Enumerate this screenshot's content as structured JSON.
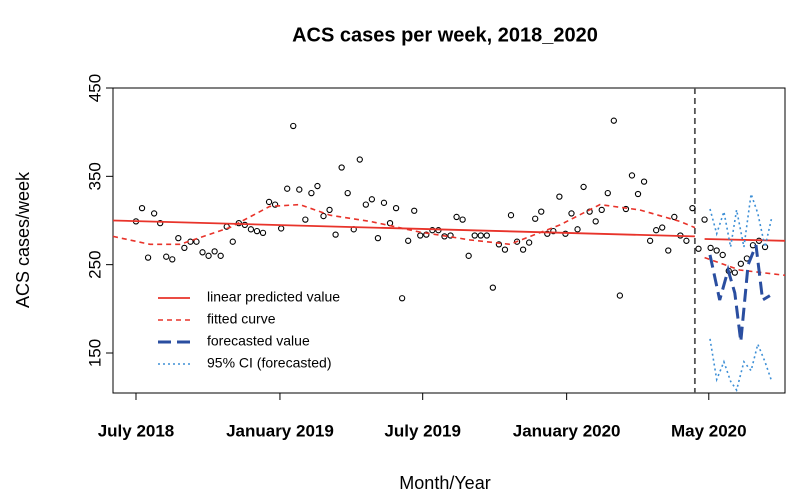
{
  "chart_data": {
    "type": "line",
    "title": "ACS cases per week, 2018_2020",
    "xlabel": "Month/Year",
    "ylabel": "ACS cases/week",
    "xlim": [
      -3.8,
      107.3
    ],
    "ylim": [
      104.7,
      450
    ],
    "xticks": [
      {
        "value": 0,
        "label": "July 2018"
      },
      {
        "value": 23.8,
        "label": "January 2019"
      },
      {
        "value": 47.4,
        "label": "July 2019"
      },
      {
        "value": 71.2,
        "label": "January 2020"
      },
      {
        "value": 94.7,
        "label": "May 2020"
      }
    ],
    "yticks": [
      150,
      250,
      350,
      450
    ],
    "vline": 92.4,
    "legend": "bottom-left",
    "series": [
      {
        "style": "points",
        "color": "#000000",
        "x": [
          0,
          1,
          2,
          3,
          4,
          5,
          6,
          7,
          8,
          9,
          10,
          11,
          12,
          13,
          14,
          15,
          16,
          17,
          18,
          19,
          20,
          21,
          22,
          23,
          24,
          25,
          26,
          27,
          28,
          29,
          30,
          31,
          32,
          33,
          34,
          35,
          36,
          37,
          38,
          39,
          40,
          41,
          42,
          43,
          44,
          45,
          46,
          47,
          48,
          49,
          50,
          51,
          52,
          53,
          54,
          55,
          56,
          57,
          58,
          59,
          60,
          61,
          62,
          63,
          64,
          65,
          66,
          67,
          68,
          69,
          70,
          71,
          72,
          73,
          74,
          75,
          76,
          77,
          78,
          79,
          80,
          81,
          82,
          83,
          84,
          85,
          86,
          87,
          88,
          89,
          90,
          91,
          92,
          93,
          94,
          95,
          96,
          97,
          98,
          99,
          100,
          101,
          102,
          103,
          104
        ],
        "values": [
          299,
          314,
          258,
          308,
          297,
          259,
          256,
          280,
          269,
          276,
          276,
          264,
          260,
          265,
          260,
          293,
          276,
          297,
          295,
          290,
          288,
          286,
          321,
          318,
          291,
          336,
          407,
          335,
          301,
          331,
          339,
          305,
          312,
          284,
          360,
          331,
          290,
          369,
          318,
          324,
          280,
          320,
          297,
          314,
          212,
          277,
          311,
          283,
          284,
          289,
          289,
          282,
          283,
          304,
          301,
          260,
          283,
          283,
          283,
          224,
          273,
          267,
          306,
          276,
          267,
          275,
          302,
          310,
          285,
          288,
          327,
          285,
          308,
          290,
          338,
          310,
          299,
          312,
          331,
          413,
          215,
          313,
          351,
          330,
          344,
          277,
          289,
          292,
          266,
          304,
          283,
          277,
          314,
          268,
          301,
          269,
          266,
          261,
          243,
          241,
          251,
          257,
          272,
          277,
          270
        ]
      },
      {
        "name": "linear predicted value",
        "style": "solid",
        "color": "#e8332a",
        "x": [
          -3.8,
          92.4,
          93.2,
          94.0,
          107.3
        ],
        "values": [
          300,
          282,
          null,
          279,
          277
        ]
      },
      {
        "name": "fitted curve",
        "style": "dashed",
        "color": "#e8332a",
        "x": [
          -3.8,
          2.3,
          7.3,
          15.5,
          22.1,
          27.1,
          32.1,
          38.7,
          46.9,
          55.2,
          61.8,
          70.1,
          76.7,
          83.3,
          89.9,
          92.4,
          93.2,
          94.0,
          99.8,
          107.3
        ],
        "values": [
          282,
          273,
          273,
          292,
          316,
          318,
          306,
          299,
          287,
          278,
          273,
          295,
          318,
          312,
          299,
          292,
          null,
          258,
          244,
          238
        ]
      },
      {
        "name": "forecasted value",
        "style": "longdash",
        "color": "#2a4ea0",
        "x": [
          94.9,
          96.5,
          97.9,
          99.0,
          100.0,
          101.2,
          102.5,
          103.6,
          104.8
        ],
        "values": [
          261,
          210,
          244,
          218,
          163,
          250,
          272,
          210,
          215
        ]
      },
      {
        "name": "95% CI (forecasted)",
        "style": "dotted",
        "color": "#3d8fd6",
        "x": [
          94.9,
          96.0,
          97.2,
          98.3,
          99.3,
          100.5,
          101.7,
          102.8,
          104.0,
          105.1,
          105.2,
          94.9,
          96.0,
          97.2,
          98.3,
          99.3,
          100.5,
          101.7,
          102.8,
          104.0,
          105.1
        ],
        "values": [
          313,
          285,
          310,
          270,
          312,
          270,
          330,
          308,
          270,
          303,
          null,
          166,
          120,
          140,
          118,
          108,
          140,
          130,
          160,
          140,
          118
        ]
      }
    ]
  }
}
